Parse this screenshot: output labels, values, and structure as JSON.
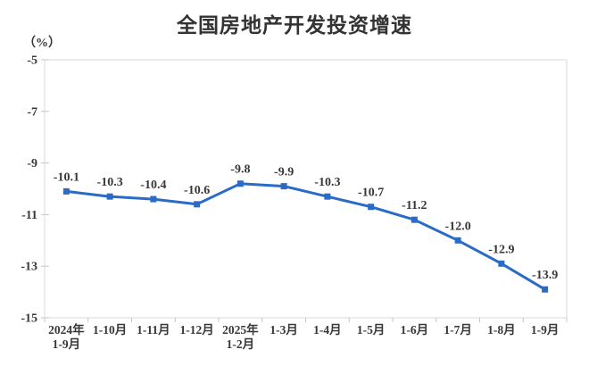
{
  "header": {
    "title": "全国房地产开发投资增速",
    "unit_label": "（%）"
  },
  "colors": {
    "line": "#2a6bc8",
    "border": "#d9d9d9",
    "axis_tick": "#c6c6c6",
    "text": "#383838",
    "title": "#333333",
    "background": "#ffffff"
  },
  "chart_data": {
    "type": "line",
    "title": "全国房地产开发投资增速",
    "ylabel": "（%）",
    "xlabel": "",
    "categories": [
      [
        "2024年",
        "1-9月"
      ],
      [
        "1-10月"
      ],
      [
        "1-11月"
      ],
      [
        "1-12月"
      ],
      [
        "2025年",
        "1-2月"
      ],
      [
        "1-3月"
      ],
      [
        "1-4月"
      ],
      [
        "1-5月"
      ],
      [
        "1-6月"
      ],
      [
        "1-7月"
      ],
      [
        "1-8月"
      ],
      [
        "1-9月"
      ]
    ],
    "values": [
      -10.1,
      -10.3,
      -10.4,
      -10.6,
      -9.8,
      -9.9,
      -10.3,
      -10.7,
      -11.2,
      -12.0,
      -12.9,
      -13.9
    ],
    "labels": [
      "-10.1",
      "-10.3",
      "-10.4",
      "-10.6",
      "-9.8",
      "-9.9",
      "-10.3",
      "-10.7",
      "-11.2",
      "-12.0",
      "-12.9",
      "-13.9"
    ],
    "ylim": [
      -15,
      -5
    ],
    "yticks": [
      -5,
      -7,
      -9,
      -11,
      -13,
      -15
    ],
    "grid": false,
    "legend": "none",
    "marker": "square",
    "series_name": "全国房地产开发投资增速"
  }
}
